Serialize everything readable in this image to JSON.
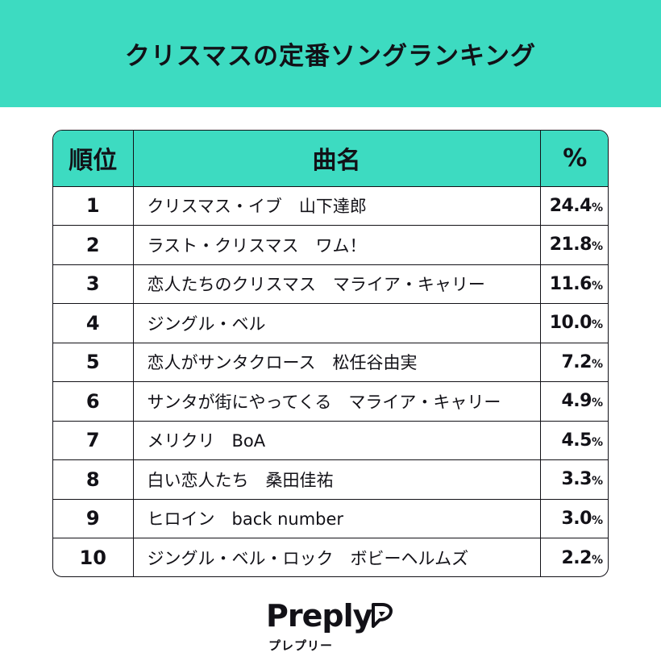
{
  "header": {
    "title": "クリスマスの定番ソングランキング"
  },
  "table": {
    "columns": {
      "rank": "順位",
      "title": "曲名",
      "percent": "%"
    },
    "rows": [
      {
        "rank": "1",
        "title": "クリスマス・イブ　山下達郎",
        "value": "24.4",
        "unit": "%"
      },
      {
        "rank": "2",
        "title": "ラスト・クリスマス　ワム！",
        "value": "21.8",
        "unit": "%"
      },
      {
        "rank": "3",
        "title": "恋人たちのクリスマス　マライア・キャリー",
        "value": "11.6",
        "unit": "%"
      },
      {
        "rank": "4",
        "title": "ジングル・ベル",
        "value": "10.0",
        "unit": "%"
      },
      {
        "rank": "5",
        "title": "恋人がサンタクロース　松任谷由実",
        "value": "7.2",
        "unit": "%"
      },
      {
        "rank": "6",
        "title": "サンタが街にやってくる　マライア・キャリー",
        "value": "4.9",
        "unit": "%"
      },
      {
        "rank": "7",
        "title": "メリクリ　BoA",
        "value": "4.5",
        "unit": "%"
      },
      {
        "rank": "8",
        "title": "白い恋人たち　桑田佳祐",
        "value": "3.3",
        "unit": "%"
      },
      {
        "rank": "9",
        "title": "ヒロイン　back number",
        "value": "3.0",
        "unit": "%"
      },
      {
        "rank": "10",
        "title": "ジングル・ベル・ロック　ボビーヘルムズ",
        "value": "2.2",
        "unit": "%"
      }
    ]
  },
  "logo": {
    "wordmark": "Preply",
    "subtitle": "プレプリー"
  },
  "colors": {
    "accent": "#3ddbc1",
    "ink": "#121117"
  },
  "icons": {
    "logo_mark": "preply-mark-icon"
  }
}
